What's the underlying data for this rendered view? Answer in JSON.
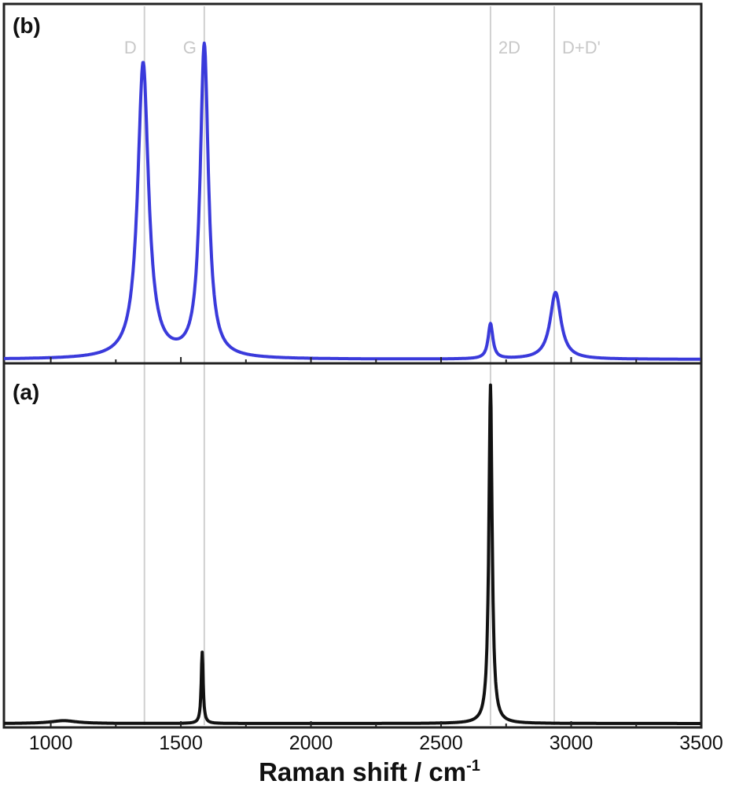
{
  "chart_data": {
    "type": "line",
    "xlabel": "Raman shift / cm",
    "xlabel_superscript": "-1",
    "xlim": [
      820,
      3500
    ],
    "x_ticks": [
      1000,
      1500,
      2000,
      2500,
      3000,
      3500
    ],
    "x_tick_labels": [
      "1000",
      "1500",
      "2000",
      "2500",
      "3000",
      "3500"
    ],
    "grid": false,
    "reference_lines": [
      {
        "label": "D",
        "x": 1360
      },
      {
        "label": "G",
        "x": 1590
      },
      {
        "label": "2D",
        "x": 2690
      },
      {
        "label": "D+D'",
        "x": 2935
      }
    ],
    "panels": [
      {
        "label": "(b)",
        "position": "top",
        "color": "#3a3adb",
        "peaks": [
          {
            "center": 1355,
            "height": 0.84,
            "width": 50
          },
          {
            "center": 1590,
            "height": 0.89,
            "width": 38
          },
          {
            "center": 2690,
            "height": 0.1,
            "width": 22
          },
          {
            "center": 2940,
            "height": 0.19,
            "width": 50
          }
        ]
      },
      {
        "label": "(a)",
        "position": "bottom",
        "color": "#111111",
        "peaks": [
          {
            "center": 1582,
            "height": 0.2,
            "width": 9
          },
          {
            "center": 2690,
            "height": 0.95,
            "width": 15
          },
          {
            "center": 1050,
            "height": 0.008,
            "width": 120
          }
        ]
      }
    ]
  }
}
